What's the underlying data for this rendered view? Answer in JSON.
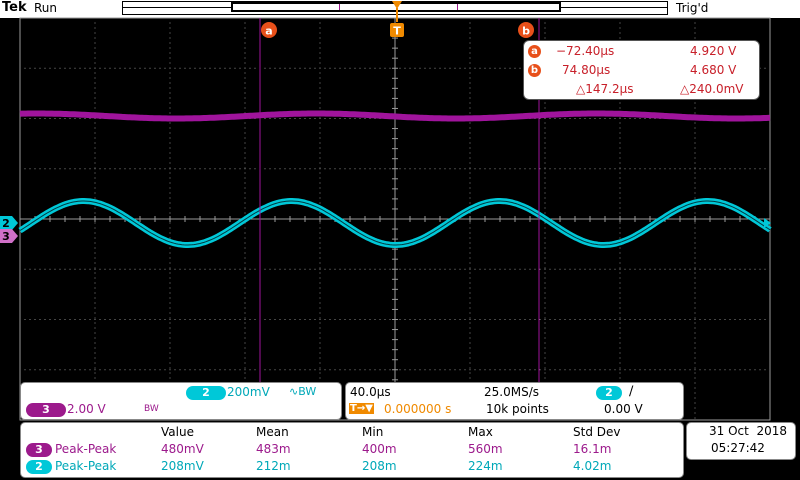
{
  "status": {
    "brand": "Tek",
    "run_state": "Run",
    "trigger_state": "Trig'd"
  },
  "markers": {
    "cursor_a": "a",
    "cursor_b": "b",
    "trigger_pos": "T",
    "ch2_offset": "2",
    "ch3_offset": "3"
  },
  "cursor_readout": {
    "a_label": "a",
    "a_time": "−72.40µs",
    "a_voltage": "4.920 V",
    "b_label": "b",
    "b_time": "74.80µs",
    "b_voltage": "4.680 V",
    "delta_time": "△147.2µs",
    "delta_voltage": "△240.0mV"
  },
  "channels": {
    "ch2_num": "2",
    "ch2_scale": "200mV",
    "ch2_coupling": "∿BW",
    "ch3_num": "3",
    "ch3_scale": "2.00 V",
    "ch3_bw": "BW"
  },
  "horizontal": {
    "timebase": "40.0µs",
    "sample_rate": "25.0MS/s",
    "trig_source": "2",
    "trig_slope": "∕",
    "trig_pos_label": "T→▼",
    "delay": "0.000000 s",
    "record_length": "10k points",
    "trig_level": "0.00 V"
  },
  "measurements": {
    "headers": [
      "Value",
      "Mean",
      "Min",
      "Max",
      "Std Dev"
    ],
    "rows": [
      {
        "ch": "3",
        "name": "Peak-Peak",
        "value": "480mV",
        "mean": "483m",
        "min": "400m",
        "max": "560m",
        "std": "16.1m"
      },
      {
        "ch": "2",
        "name": "Peak-Peak",
        "value": "208mV",
        "mean": "212m",
        "min": "208m",
        "max": "224m",
        "std": "4.02m"
      }
    ]
  },
  "datetime": {
    "date": "31 Oct  2018",
    "time": "05:27:42"
  },
  "colors": {
    "ch2": "#00c8d8",
    "ch3": "#a0149c",
    "cursor": "#a0149c",
    "trigger": "#f08a00",
    "accent": "#e8501a"
  }
}
